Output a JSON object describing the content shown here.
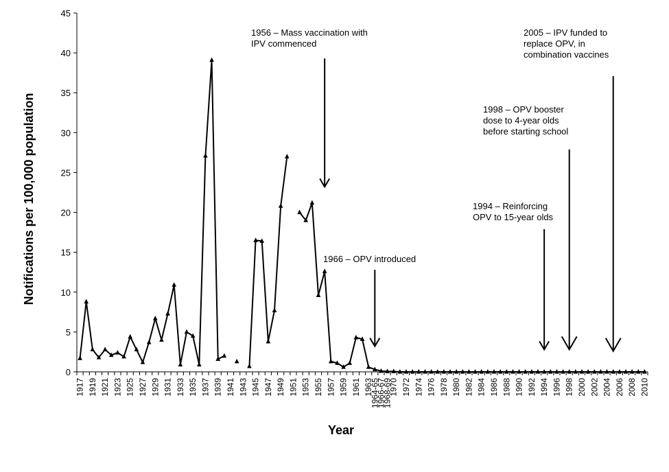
{
  "chart_data": {
    "type": "line",
    "title": "",
    "xlabel": "Year",
    "ylabel": "Notifications per 100,000 population",
    "ylim": [
      0,
      45
    ],
    "yticks": [
      0,
      5,
      10,
      15,
      20,
      25,
      30,
      35,
      40,
      45
    ],
    "grid": false,
    "legend": "none",
    "line_color": "#000000",
    "marker": "triangle",
    "categories": [
      "1917",
      "1918",
      "1919",
      "1920",
      "1921",
      "1922",
      "1923",
      "1924",
      "1925",
      "1926",
      "1927",
      "1928",
      "1929",
      "1930",
      "1931",
      "1932",
      "1933",
      "1934",
      "1935",
      "1936",
      "1937",
      "1938",
      "1939",
      "1940",
      "1941",
      "1942",
      "1943",
      "1944",
      "1945",
      "1946",
      "1947",
      "1948",
      "1949",
      "1950",
      "1951",
      "1952",
      "1953",
      "1954",
      "1955",
      "1956",
      "1957",
      "1958",
      "1959",
      "1960",
      "1961",
      "1962",
      "1963",
      "1964-65",
      "1966-67",
      "1968-69",
      "1970",
      "1971",
      "1972",
      "1973",
      "1974",
      "1975",
      "1976",
      "1977",
      "1978",
      "1979",
      "1980",
      "1981",
      "1982",
      "1983",
      "1984",
      "1985",
      "1986",
      "1987",
      "1988",
      "1989",
      "1990",
      "1991",
      "1992",
      "1993",
      "1994",
      "1995",
      "1996",
      "1997",
      "1998",
      "1999",
      "2000",
      "2001",
      "2002",
      "2003",
      "2004",
      "2005",
      "2006",
      "2007",
      "2008",
      "2009",
      "2010"
    ],
    "tick_labels": [
      "1917",
      "1919",
      "1921",
      "1923",
      "1925",
      "1927",
      "1929",
      "1931",
      "1933",
      "1935",
      "1937",
      "1939",
      "1941",
      "1943",
      "1945",
      "1947",
      "1949",
      "1951",
      "1953",
      "1955",
      "1957",
      "1959",
      "1961",
      "1963",
      "1964-65",
      "1966-67",
      "1968-69",
      "1970",
      "1972",
      "1974",
      "1976",
      "1978",
      "1980",
      "1982",
      "1984",
      "1986",
      "1988",
      "1990",
      "1992",
      "1994",
      "1996",
      "1998",
      "2000",
      "2002",
      "2004",
      "2006",
      "2008",
      "2010"
    ],
    "values": [
      1.7,
      8.8,
      2.8,
      1.8,
      2.8,
      2.1,
      2.4,
      1.9,
      4.4,
      2.8,
      1.2,
      3.7,
      6.7,
      4.0,
      7.3,
      10.9,
      0.9,
      5.0,
      4.5,
      0.9,
      27.1,
      39.1,
      1.6,
      2.0,
      null,
      1.3,
      null,
      0.7,
      16.5,
      16.4,
      3.8,
      7.7,
      20.8,
      27.0,
      null,
      20.0,
      19.0,
      21.2,
      9.6,
      12.6,
      1.3,
      1.1,
      0.6,
      1.1,
      4.3,
      4.1,
      0.6,
      0.3,
      0.1,
      0.05,
      0.05,
      0,
      0,
      0,
      0,
      0,
      0,
      0,
      0,
      0,
      0,
      0,
      0,
      0,
      0,
      0,
      0,
      0,
      0,
      0,
      0,
      0,
      0,
      0,
      0,
      0,
      0,
      0,
      0,
      0,
      0,
      0,
      0,
      0,
      0,
      0,
      0,
      0,
      0,
      0,
      0
    ],
    "annotations": [
      {
        "lines": [
          "1956 – Mass vaccination with",
          "IPV commenced"
        ],
        "year": "1956",
        "arrow_from": 39.3,
        "arrow_to": 23.2
      },
      {
        "lines": [
          "1966 – OPV introduced"
        ],
        "year": "1964-65",
        "arrow_from": 12.8,
        "arrow_to": 3.2
      },
      {
        "lines": [
          "1994 – Reinforcing",
          "OPV to 15-year olds"
        ],
        "year": "1994",
        "arrow_from": 17.9,
        "arrow_to": 2.8
      },
      {
        "lines": [
          "1998 – OPV booster",
          "dose to 4-year olds",
          "before starting school"
        ],
        "year": "1998",
        "arrow_from": 27.9,
        "arrow_to": 2.8
      },
      {
        "lines": [
          "2005 – IPV funded to",
          "replace OPV, in",
          "combination vaccines"
        ],
        "year": "2005",
        "arrow_from": 37.1,
        "arrow_to": 2.6
      }
    ]
  }
}
